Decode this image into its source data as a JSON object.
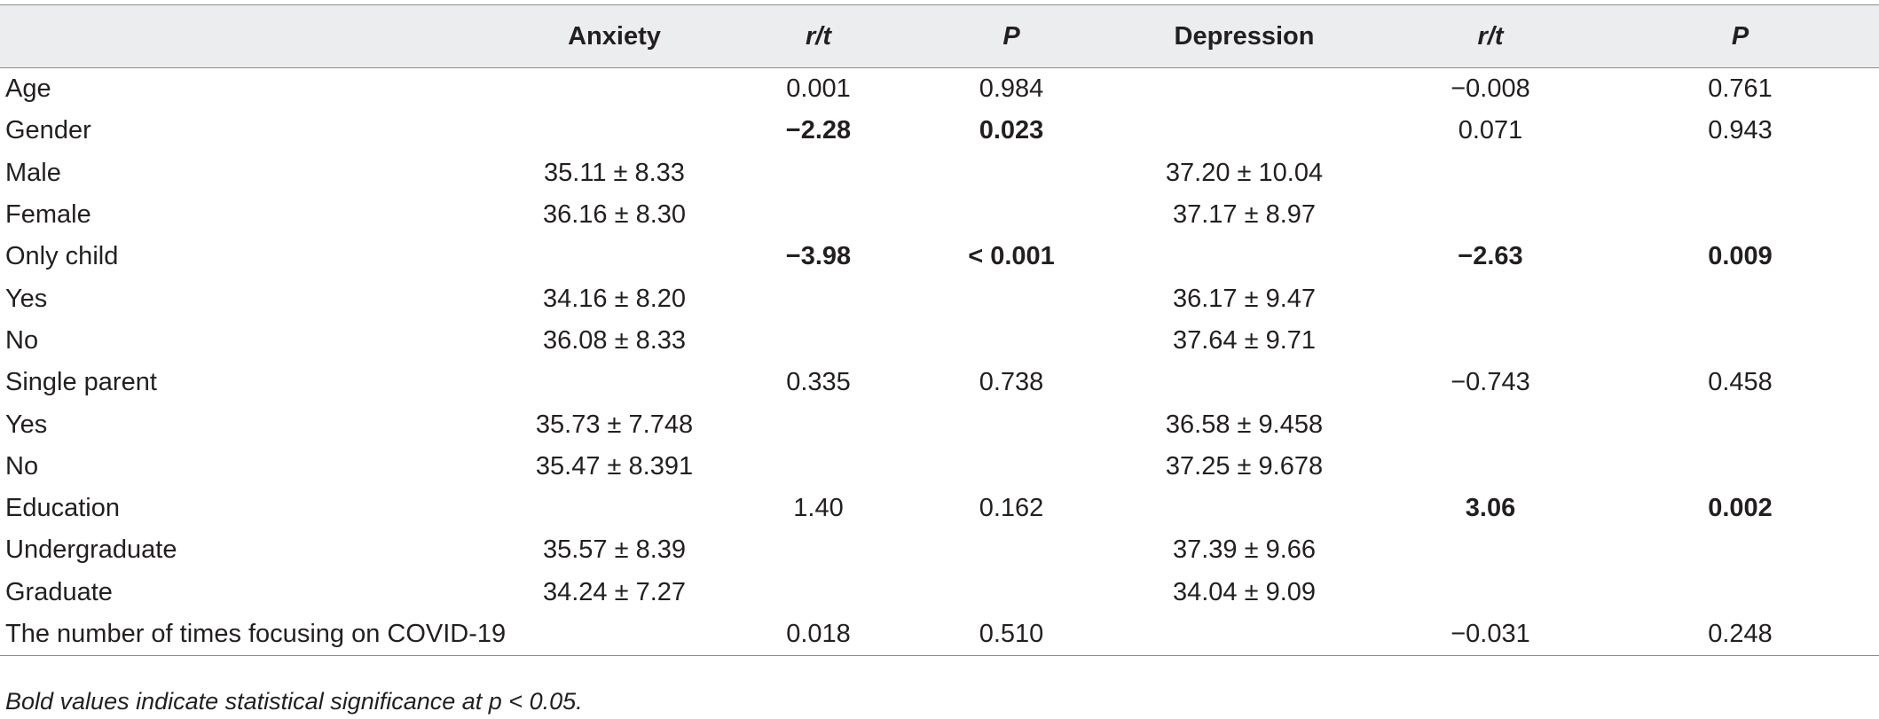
{
  "table": {
    "headers": [
      "",
      "Anxiety",
      "r/t",
      "P",
      "Depression",
      "r/t",
      "P"
    ],
    "rows": [
      {
        "label": "Age",
        "anxiety": "",
        "anx_rt": "0.001",
        "anx_p": "0.984",
        "depression": "",
        "dep_rt": "−0.008",
        "dep_p": "0.761",
        "bold": [
          false,
          false,
          false,
          false
        ]
      },
      {
        "label": "Gender",
        "anxiety": "",
        "anx_rt": "−2.28",
        "anx_p": "0.023",
        "depression": "",
        "dep_rt": "0.071",
        "dep_p": "0.943",
        "bold": [
          true,
          true,
          false,
          false
        ]
      },
      {
        "label": "Male",
        "anxiety": "35.11 ± 8.33",
        "anx_rt": "",
        "anx_p": "",
        "depression": "37.20 ± 10.04",
        "dep_rt": "",
        "dep_p": "",
        "bold": [
          false,
          false,
          false,
          false
        ]
      },
      {
        "label": "Female",
        "anxiety": "36.16 ± 8.30",
        "anx_rt": "",
        "anx_p": "",
        "depression": "37.17 ± 8.97",
        "dep_rt": "",
        "dep_p": "",
        "bold": [
          false,
          false,
          false,
          false
        ]
      },
      {
        "label": "Only child",
        "anxiety": "",
        "anx_rt": "−3.98",
        "anx_p": "< 0.001",
        "depression": "",
        "dep_rt": "−2.63",
        "dep_p": "0.009",
        "bold": [
          true,
          true,
          true,
          true
        ]
      },
      {
        "label": "Yes",
        "anxiety": "34.16 ± 8.20",
        "anx_rt": "",
        "anx_p": "",
        "depression": "36.17 ± 9.47",
        "dep_rt": "",
        "dep_p": "",
        "bold": [
          false,
          false,
          false,
          false
        ]
      },
      {
        "label": "No",
        "anxiety": "36.08 ± 8.33",
        "anx_rt": "",
        "anx_p": "",
        "depression": "37.64 ± 9.71",
        "dep_rt": "",
        "dep_p": "",
        "bold": [
          false,
          false,
          false,
          false
        ]
      },
      {
        "label": "Single parent",
        "anxiety": "",
        "anx_rt": "0.335",
        "anx_p": "0.738",
        "depression": "",
        "dep_rt": "−0.743",
        "dep_p": "0.458",
        "bold": [
          false,
          false,
          false,
          false
        ]
      },
      {
        "label": "Yes",
        "anxiety": "35.73 ± 7.748",
        "anx_rt": "",
        "anx_p": "",
        "depression": "36.58 ± 9.458",
        "dep_rt": "",
        "dep_p": "",
        "bold": [
          false,
          false,
          false,
          false
        ]
      },
      {
        "label": "No",
        "anxiety": "35.47 ± 8.391",
        "anx_rt": "",
        "anx_p": "",
        "depression": "37.25 ± 9.678",
        "dep_rt": "",
        "dep_p": "",
        "bold": [
          false,
          false,
          false,
          false
        ]
      },
      {
        "label": "Education",
        "anxiety": "",
        "anx_rt": "1.40",
        "anx_p": "0.162",
        "depression": "",
        "dep_rt": "3.06",
        "dep_p": "0.002",
        "bold": [
          false,
          false,
          true,
          true
        ]
      },
      {
        "label": "Undergraduate",
        "anxiety": "35.57 ± 8.39",
        "anx_rt": "",
        "anx_p": "",
        "depression": "37.39 ± 9.66",
        "dep_rt": "",
        "dep_p": "",
        "bold": [
          false,
          false,
          false,
          false
        ]
      },
      {
        "label": "Graduate",
        "anxiety": "34.24 ± 7.27",
        "anx_rt": "",
        "anx_p": "",
        "depression": "34.04 ± 9.09",
        "dep_rt": "",
        "dep_p": "",
        "bold": [
          false,
          false,
          false,
          false
        ]
      },
      {
        "label": "The number of times focusing on COVID-19",
        "anxiety": "",
        "anx_rt": "0.018",
        "anx_p": "0.510",
        "depression": "",
        "dep_rt": "−0.031",
        "dep_p": "0.248",
        "bold": [
          false,
          false,
          false,
          false
        ]
      }
    ]
  },
  "footnote": "Bold values indicate statistical significance at p < 0.05.",
  "colors": {
    "header_bg": "#ecedef",
    "rule": "#8a8a8a",
    "text": "#231f20"
  }
}
